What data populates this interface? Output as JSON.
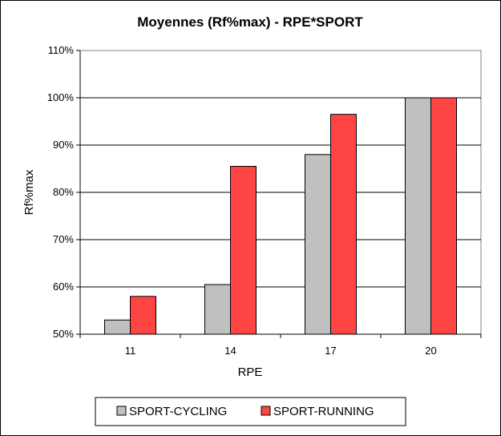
{
  "chart_data": {
    "type": "bar",
    "title": "Moyennes (Rf%max) - RPE*SPORT",
    "xlabel": "RPE",
    "ylabel": "Rf%max",
    "categories": [
      "11",
      "14",
      "17",
      "20"
    ],
    "series": [
      {
        "name": "SPORT-CYCLING",
        "values": [
          53,
          60.5,
          88,
          100
        ],
        "color": "#c0c0c0"
      },
      {
        "name": "SPORT-RUNNING",
        "values": [
          58,
          85.5,
          96.5,
          100
        ],
        "color": "#ff4444"
      }
    ],
    "ylim": [
      50,
      110
    ],
    "yticks": [
      "50%",
      "60%",
      "70%",
      "80%",
      "90%",
      "100%",
      "110%"
    ],
    "grid": "horizontal",
    "legend": "bottom"
  }
}
